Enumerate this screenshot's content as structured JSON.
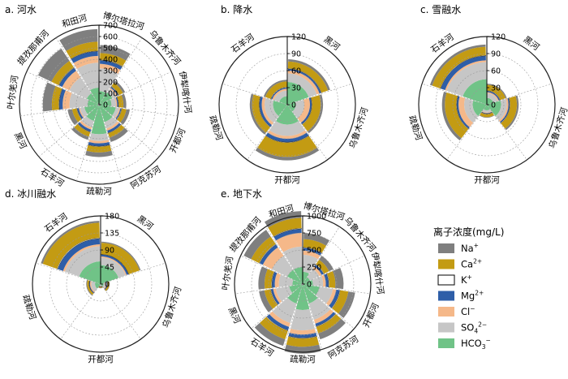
{
  "chart_data": {
    "type": "nightingale-stacked",
    "legend": {
      "title": "离子浓度(mg/L)",
      "items": [
        {
          "key": "Na",
          "label": "Na",
          "sup": "+",
          "sub": "",
          "color": "#7f7f7f"
        },
        {
          "key": "Ca",
          "label": "Ca",
          "sup": "2+",
          "sub": "",
          "color": "#c39b13"
        },
        {
          "key": "K",
          "label": "K",
          "sup": "+",
          "sub": "",
          "color": "#ffffff"
        },
        {
          "key": "Mg",
          "label": "Mg",
          "sup": "2+",
          "sub": "",
          "color": "#2e5ea8"
        },
        {
          "key": "Cl",
          "label": "Cl",
          "sup": "−",
          "sub": "",
          "color": "#f5b889"
        },
        {
          "key": "SO4",
          "label": "SO",
          "sup": "2−",
          "sub": "4",
          "color": "#c6c6c6"
        },
        {
          "key": "HCO3",
          "label": "HCO",
          "sup": "−",
          "sub": "3",
          "color": "#70c387"
        }
      ]
    },
    "panels": [
      {
        "title": "a. 河水",
        "max": 700,
        "ticks": [
          "0",
          "100",
          "200",
          "300",
          "400",
          "500",
          "600",
          "700"
        ],
        "tick_values": [
          0,
          100,
          200,
          300,
          400,
          500,
          600,
          700
        ],
        "start_angle": 0,
        "categories": [
          "博尔塔拉河",
          "乌鲁木齐河",
          "伊犁喀什河",
          "开都河",
          "阿克苏河",
          "疏勒河",
          "石羊河",
          "黑河",
          "叶尔羌河",
          "提孜那甫河",
          "和田河"
        ],
        "values": {
          "HCO3": [
            120,
            130,
            110,
            150,
            160,
            260,
            150,
            130,
            100,
            120,
            150
          ],
          "SO4": [
            200,
            40,
            40,
            30,
            60,
            60,
            60,
            40,
            160,
            170,
            220
          ],
          "Cl": [
            40,
            10,
            10,
            10,
            20,
            20,
            20,
            10,
            60,
            70,
            60
          ],
          "Mg": [
            30,
            10,
            10,
            10,
            20,
            25,
            20,
            15,
            30,
            30,
            40
          ],
          "K": [
            5,
            5,
            5,
            5,
            5,
            5,
            5,
            5,
            5,
            5,
            5
          ],
          "Ca": [
            60,
            40,
            40,
            40,
            40,
            50,
            40,
            40,
            60,
            70,
            80
          ],
          "Na": [
            70,
            20,
            25,
            30,
            40,
            40,
            30,
            40,
            80,
            130,
            110
          ]
        }
      },
      {
        "title": "b. 降水",
        "max": 120,
        "ticks": [
          "0",
          "30",
          "60",
          "90",
          "120"
        ],
        "tick_values": [
          0,
          30,
          60,
          90,
          120
        ],
        "start_angle": 0,
        "categories": [
          "黑河",
          "乌鲁木齐河",
          "开都河",
          "疏勒河",
          "石羊河"
        ],
        "values": {
          "HCO3": [
            40,
            15,
            35,
            25,
            15
          ],
          "SO4": [
            15,
            15,
            20,
            15,
            10
          ],
          "Cl": [
            5,
            10,
            5,
            5,
            3
          ],
          "Mg": [
            3,
            3,
            6,
            4,
            2
          ],
          "K": [
            1,
            1,
            1,
            1,
            1
          ],
          "Ca": [
            12,
            15,
            25,
            12,
            10
          ],
          "Na": [
            4,
            4,
            6,
            4,
            3
          ]
        }
      },
      {
        "title": "c. 雪融水",
        "max": 120,
        "ticks": [
          "0",
          "30",
          "60",
          "90",
          "120"
        ],
        "tick_values": [
          0,
          30,
          60,
          90,
          120
        ],
        "start_angle": 0,
        "categories": [
          "黑河",
          "乌鲁木齐河",
          "开都河",
          "疏勒河",
          "石羊河"
        ],
        "values": {
          "HCO3": [
            12,
            25,
            10,
            25,
            45
          ],
          "SO4": [
            8,
            10,
            4,
            15,
            30
          ],
          "Cl": [
            2,
            3,
            1,
            10,
            3
          ],
          "Mg": [
            2,
            2,
            1,
            3,
            8
          ],
          "K": [
            1,
            1,
            1,
            1,
            1
          ],
          "Ca": [
            10,
            12,
            5,
            20,
            15
          ],
          "Na": [
            2,
            3,
            1,
            5,
            4
          ]
        }
      },
      {
        "title": "d. 冰川融水",
        "max": 180,
        "ticks": [
          "0",
          "45",
          "90",
          "135",
          "180"
        ],
        "tick_values": [
          0,
          45,
          90,
          135,
          180
        ],
        "start_angle": 0,
        "categories": [
          "黑河",
          "乌鲁木齐河",
          "开都河",
          "疏勒河",
          "石羊河"
        ],
        "values": {
          "HCO3": [
            50,
            8,
            3,
            15,
            60
          ],
          "SO4": [
            20,
            6,
            2,
            10,
            40
          ],
          "Cl": [
            3,
            2,
            1,
            3,
            5
          ],
          "Mg": [
            5,
            2,
            1,
            2,
            15
          ],
          "K": [
            1,
            1,
            1,
            1,
            2
          ],
          "Ca": [
            30,
            4,
            2,
            5,
            40
          ],
          "Na": [
            3,
            1,
            1,
            2,
            5
          ]
        }
      },
      {
        "title": "e. 地下水",
        "max": 1000,
        "ticks": [
          "0",
          "250",
          "500",
          "750",
          "1000"
        ],
        "tick_values": [
          0,
          250,
          500,
          750,
          1000
        ],
        "start_angle": 0,
        "categories": [
          "博尔塔拉河",
          "乌鲁木齐河",
          "伊犁喀什河",
          "开都河",
          "阿克苏河",
          "疏勒河",
          "石羊河",
          "黑河",
          "叶尔羌河",
          "提孜那甫河",
          "和田河"
        ],
        "values": {
          "HCO3": [
            180,
            120,
            150,
            250,
            300,
            380,
            300,
            200,
            150,
            250,
            250
          ],
          "SO4": [
            250,
            150,
            150,
            200,
            250,
            300,
            300,
            200,
            200,
            250,
            300
          ],
          "Cl": [
            60,
            40,
            40,
            50,
            60,
            60,
            60,
            40,
            60,
            150,
            200
          ],
          "Mg": [
            40,
            30,
            40,
            50,
            40,
            50,
            50,
            30,
            40,
            50,
            60
          ],
          "K": [
            10,
            10,
            10,
            10,
            10,
            10,
            10,
            10,
            10,
            10,
            10
          ],
          "Ca": [
            120,
            80,
            90,
            120,
            100,
            120,
            130,
            90,
            100,
            130,
            150
          ],
          "Na": [
            90,
            70,
            120,
            100,
            90,
            100,
            100,
            80,
            90,
            120,
            100
          ]
        }
      }
    ]
  }
}
